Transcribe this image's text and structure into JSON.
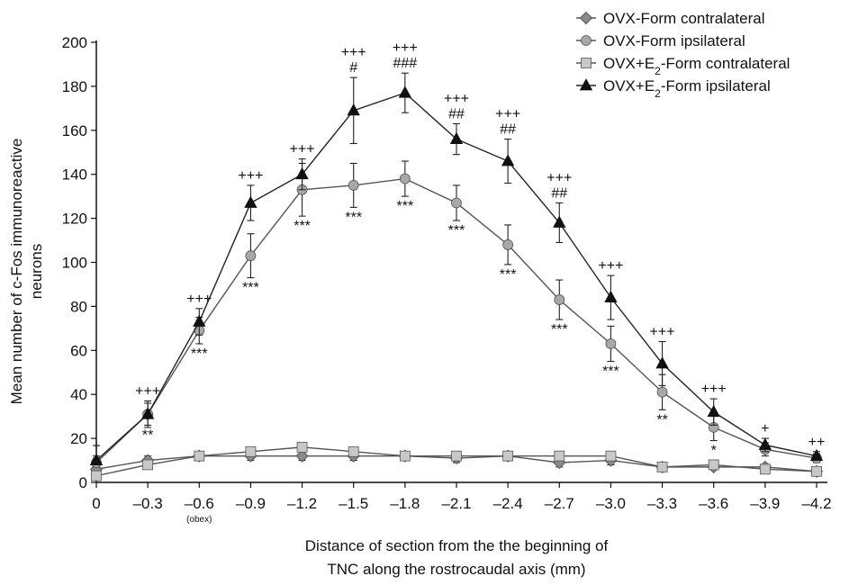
{
  "chart_data": {
    "type": "line",
    "xlabel_lines": [
      "Distance of section from the the beginning of",
      "TNC along the rostrocaudal axis (mm)"
    ],
    "ylabel_lines": [
      "Mean number of c-Fos immunoreactive",
      "neurons"
    ],
    "x_tick_labels": [
      "0",
      "–0.3",
      "–0.6",
      "–0.9",
      "–1.2",
      "–1.5",
      "–1.8",
      "–2.1",
      "–2.4",
      "–2.7",
      "–3.0",
      "–3.3",
      "–3.6",
      "–3.9",
      "–4.2"
    ],
    "x": [
      0,
      -0.3,
      -0.6,
      -0.9,
      -1.2,
      -1.5,
      -1.8,
      -2.1,
      -2.4,
      -2.7,
      -3.0,
      -3.3,
      -3.6,
      -3.9,
      -4.2
    ],
    "x_annotation": {
      "index": 2,
      "text": "(obex)"
    },
    "ylim": [
      0,
      200
    ],
    "y_ticks": [
      0,
      20,
      40,
      60,
      80,
      100,
      120,
      140,
      160,
      180,
      200
    ],
    "grid": false,
    "legend_position": "top-right",
    "series": [
      {
        "name_parts": [
          "OVX-Form contralateral"
        ],
        "marker": "diamond",
        "marker_color": "#8a8a8a",
        "line_color": "#555555",
        "values": [
          6,
          10,
          12,
          12,
          12,
          12,
          12,
          11,
          12,
          9,
          10,
          7,
          7,
          7,
          5
        ],
        "errors": [
          2,
          2,
          2,
          2,
          2,
          2,
          1,
          2,
          2,
          2,
          2,
          1,
          1,
          1,
          1
        ]
      },
      {
        "name_parts": [
          "OVX-Form ipsilateral"
        ],
        "marker": "circle",
        "marker_color": "#a8a8a8",
        "line_color": "#555555",
        "values": [
          9,
          31,
          69,
          103,
          133,
          135,
          138,
          127,
          108,
          83,
          63,
          41,
          25,
          15,
          11
        ],
        "errors": [
          2,
          5,
          6,
          10,
          12,
          10,
          8,
          8,
          9,
          9,
          8,
          8,
          6,
          3,
          2
        ]
      },
      {
        "name_parts": [
          "OVX+E",
          "2",
          "-Form contralateral"
        ],
        "marker": "square",
        "marker_color": "#c8c8c8",
        "line_color": "#555555",
        "values": [
          3,
          8,
          12,
          14,
          16,
          14,
          12,
          12,
          12,
          12,
          12,
          7,
          8,
          6,
          5
        ],
        "errors": [
          1,
          2,
          2,
          2,
          2,
          2,
          1,
          2,
          2,
          2,
          2,
          1,
          1,
          1,
          1
        ]
      },
      {
        "name_parts": [
          "OVX+E",
          "2",
          "-Form ipsilateral"
        ],
        "marker": "triangle",
        "marker_color": "#111111",
        "line_color": "#222222",
        "values": [
          10,
          31,
          73,
          127,
          140,
          169,
          177,
          156,
          146,
          118,
          84,
          54,
          32,
          17,
          12
        ],
        "errors": [
          2,
          6,
          6,
          8,
          7,
          15,
          9,
          7,
          10,
          9,
          10,
          10,
          6,
          3,
          2
        ]
      }
    ],
    "annotations_above": [
      [
        "+"
      ],
      [
        "+++"
      ],
      [
        "+++"
      ],
      [
        "+++"
      ],
      [
        "+++"
      ],
      [
        "+++",
        "#"
      ],
      [
        "+++",
        "###"
      ],
      [
        "+++",
        "##"
      ],
      [
        "+++",
        "##"
      ],
      [
        "+++",
        "##"
      ],
      [
        "+++"
      ],
      [
        "+++"
      ],
      [
        "+++"
      ],
      [
        "+"
      ],
      [
        "++"
      ]
    ],
    "annotations_below": [
      "",
      "**",
      "***",
      "***",
      "***",
      "***",
      "***",
      "***",
      "***",
      "***",
      "***",
      "**",
      "*",
      "",
      ""
    ]
  }
}
